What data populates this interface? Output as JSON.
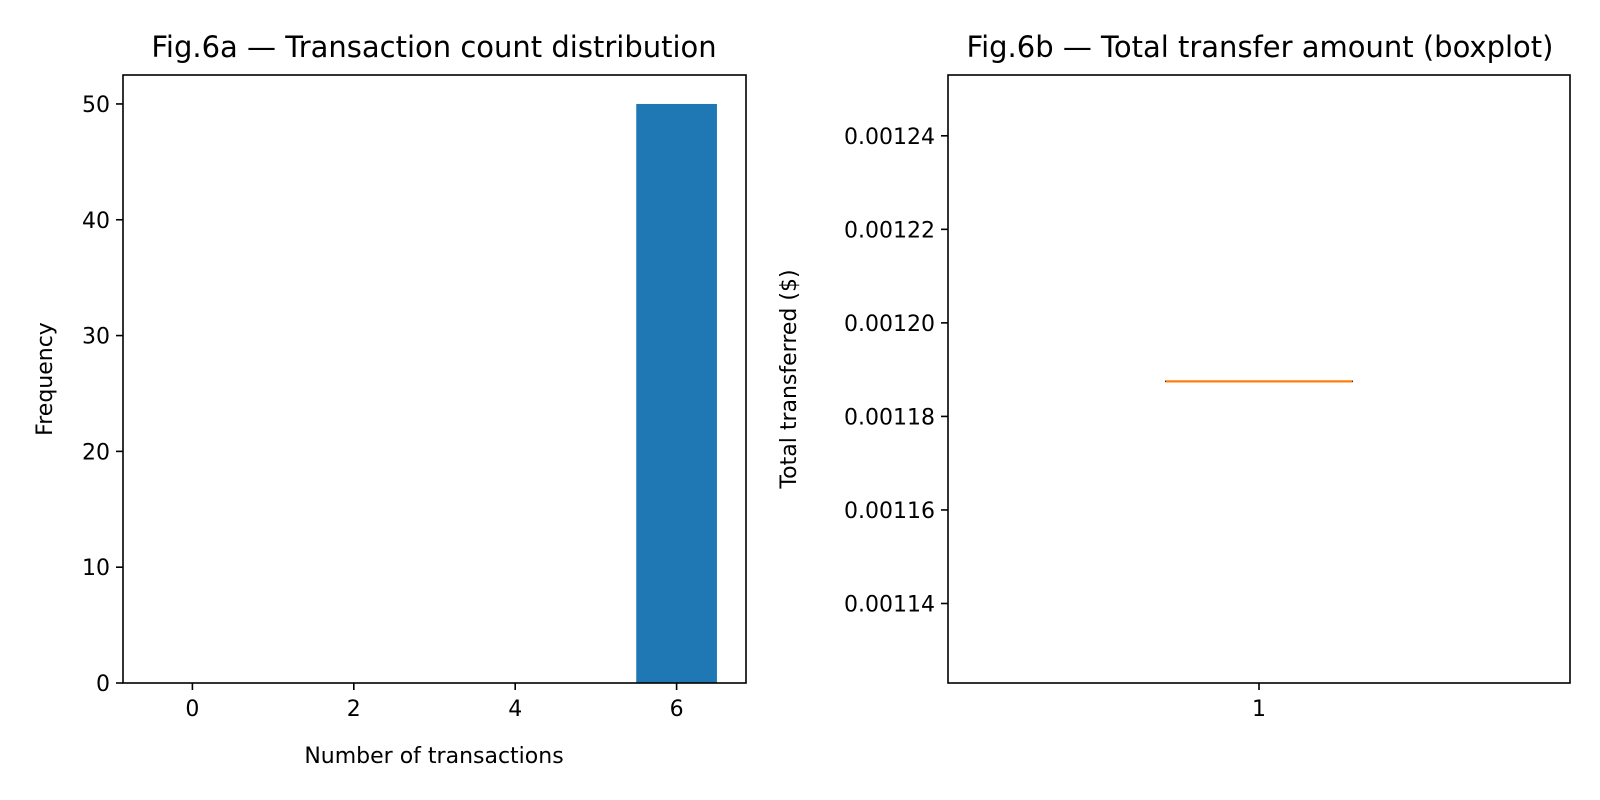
{
  "chart_data": [
    {
      "type": "bar",
      "title": "Fig.6a — Transaction count distribution",
      "xlabel": "Number of transactions",
      "ylabel": "Frequency",
      "xlim": [
        -0.86,
        6.86
      ],
      "ylim": [
        0,
        52.5
      ],
      "xticks": [
        0,
        2,
        4,
        6
      ],
      "yticks": [
        0,
        10,
        20,
        30,
        40,
        50
      ],
      "bars": [
        {
          "x_start": 5.5,
          "x_end": 6.5,
          "value": 50
        }
      ],
      "bar_color": "#1f77b4",
      "grid": false,
      "legend": "none"
    },
    {
      "type": "boxplot",
      "title": "Fig.6b — Total transfer amount (boxplot)",
      "xlabel": "",
      "ylabel": "Total transferred ($)",
      "xlim": [
        0.5,
        1.5
      ],
      "ylim": [
        0.001123,
        0.001253
      ],
      "xticks": [
        1
      ],
      "yticks": [
        0.00114,
        0.00116,
        0.00118,
        0.0012,
        0.00122,
        0.00124
      ],
      "ytick_labels": [
        "0.00114",
        "0.00116",
        "0.00118",
        "0.00120",
        "0.00122",
        "0.00124"
      ],
      "boxes": [
        {
          "x": 1,
          "min": 0.0011875,
          "q1": 0.0011875,
          "median": 0.0011875,
          "q3": 0.0011875,
          "max": 0.0011875
        }
      ],
      "median_color": "#ff7f0e",
      "grid": false,
      "legend": "none"
    }
  ]
}
